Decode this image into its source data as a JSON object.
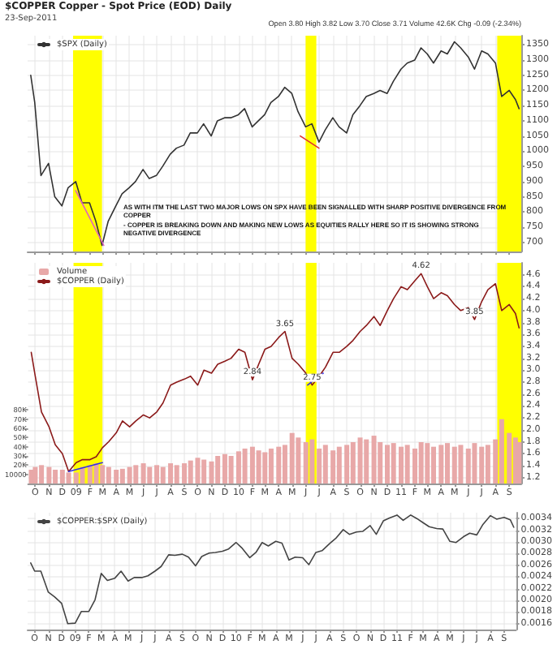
{
  "chart_data": [
    {
      "type": "line",
      "title": "$COPPER Copper - Spot Price (EOD) Daily",
      "subtitle": "23-Sep-2011",
      "x": [
        "2008-09-22",
        "2008-10-01",
        "2008-10-15",
        "2008-11-01",
        "2008-11-15",
        "2008-12-01",
        "2008-12-15",
        "2009-01-01",
        "2009-01-15",
        "2009-02-01",
        "2009-02-15",
        "2009-03-01",
        "2009-03-15",
        "2009-04-01",
        "2009-04-15",
        "2009-05-01",
        "2009-05-15",
        "2009-06-01",
        "2009-06-15",
        "2009-07-01",
        "2009-07-15",
        "2009-08-01",
        "2009-08-15",
        "2009-09-01",
        "2009-09-15",
        "2009-10-01",
        "2009-10-15",
        "2009-11-01",
        "2009-11-15",
        "2009-12-01",
        "2009-12-15",
        "2010-01-01",
        "2010-01-15",
        "2010-02-01",
        "2010-02-15",
        "2010-03-01",
        "2010-03-15",
        "2010-04-01",
        "2010-04-15",
        "2010-05-01",
        "2010-05-15",
        "2010-06-01",
        "2010-06-15",
        "2010-07-01",
        "2010-07-15",
        "2010-08-01",
        "2010-08-15",
        "2010-09-01",
        "2010-09-15",
        "2010-10-01",
        "2010-10-15",
        "2010-11-01",
        "2010-11-15",
        "2010-12-01",
        "2010-12-15",
        "2011-01-01",
        "2011-01-15",
        "2011-02-01",
        "2011-02-15",
        "2011-03-01",
        "2011-03-15",
        "2011-04-01",
        "2011-04-15",
        "2011-05-01",
        "2011-05-15",
        "2011-06-01",
        "2011-06-15",
        "2011-07-01",
        "2011-07-15",
        "2011-08-01",
        "2011-08-15",
        "2011-09-01",
        "2011-09-15",
        "2011-09-23"
      ],
      "series": [
        {
          "name": "$SPX (Daily)",
          "color": "#333333",
          "values": [
            1250,
            1160,
            920,
            960,
            850,
            820,
            880,
            900,
            830,
            830,
            770,
            690,
            770,
            820,
            860,
            880,
            900,
            940,
            910,
            920,
            950,
            990,
            1010,
            1020,
            1060,
            1060,
            1090,
            1050,
            1100,
            1110,
            1110,
            1120,
            1140,
            1080,
            1100,
            1120,
            1160,
            1180,
            1210,
            1190,
            1130,
            1080,
            1090,
            1030,
            1070,
            1110,
            1080,
            1060,
            1120,
            1150,
            1180,
            1190,
            1200,
            1190,
            1230,
            1270,
            1290,
            1300,
            1340,
            1320,
            1290,
            1330,
            1320,
            1360,
            1340,
            1310,
            1270,
            1330,
            1320,
            1290,
            1180,
            1200,
            1170,
            1140
          ]
        },
        {
          "type": "line",
          "color": "#e060c0",
          "x": [
            "2009-01-01",
            "2009-03-05"
          ],
          "values": [
            870,
            690
          ]
        },
        {
          "type": "line",
          "color": "#e03030",
          "x": [
            "2010-05-20",
            "2010-07-01"
          ],
          "values": [
            1050,
            1010
          ]
        }
      ],
      "xlim": [
        "2008-09-15",
        "2011-09-28"
      ],
      "ylim": [
        670,
        1380
      ],
      "yticks": [
        700,
        750,
        800,
        850,
        900,
        950,
        1000,
        1050,
        1100,
        1150,
        1200,
        1250,
        1300,
        1350
      ],
      "xticks": [
        {
          "value": "2008-10-01",
          "label": null
        },
        {
          "value": "2008-11-01",
          "label": null
        },
        {
          "value": "2008-12-01",
          "label": null
        },
        {
          "value": "2009-01-01",
          "label": null
        },
        {
          "value": "2009-02-01",
          "label": null
        },
        {
          "value": "2009-03-01",
          "label": null
        },
        {
          "value": "2009-04-01",
          "label": null
        },
        {
          "value": "2009-05-01",
          "label": null
        },
        {
          "value": "2009-06-01",
          "label": null
        },
        {
          "value": "2009-07-01",
          "label": null
        },
        {
          "value": "2009-08-01",
          "label": null
        },
        {
          "value": "2009-09-01",
          "label": null
        },
        {
          "value": "2009-10-01",
          "label": null
        },
        {
          "value": "2009-11-01",
          "label": null
        },
        {
          "value": "2009-12-01",
          "label": null
        },
        {
          "value": "2010-01-01",
          "label": null
        },
        {
          "value": "2010-02-01",
          "label": null
        },
        {
          "value": "2010-03-01",
          "label": null
        },
        {
          "value": "2010-04-01",
          "label": null
        },
        {
          "value": "2010-05-01",
          "label": null
        },
        {
          "value": "2010-06-01",
          "label": null
        },
        {
          "value": "2010-07-01",
          "label": null
        },
        {
          "value": "2010-08-01",
          "label": null
        },
        {
          "value": "2010-09-01",
          "label": null
        },
        {
          "value": "2010-10-01",
          "label": null
        },
        {
          "value": "2010-11-01",
          "label": null
        },
        {
          "value": "2010-12-01",
          "label": null
        },
        {
          "value": "2011-01-01",
          "label": null
        },
        {
          "value": "2011-02-01",
          "label": null
        },
        {
          "value": "2011-03-01",
          "label": null
        },
        {
          "value": "2011-04-01",
          "label": null
        },
        {
          "value": "2011-05-01",
          "label": null
        },
        {
          "value": "2011-06-01",
          "label": null
        },
        {
          "value": "2011-07-01",
          "label": null
        },
        {
          "value": "2011-08-01",
          "label": null
        },
        {
          "value": "2011-09-01",
          "label": null
        }
      ],
      "tick_labels": "y",
      "grid": true,
      "legend": "top left",
      "bands": [
        {
          "axis": "x",
          "from": "2008-12-26",
          "to": "2009-03-01",
          "color": "#ffff00"
        },
        {
          "axis": "x",
          "from": "2010-06-01",
          "to": "2010-06-25",
          "color": "#ffff00"
        },
        {
          "axis": "x",
          "from": "2011-08-05",
          "to": "2011-09-28",
          "color": "#ffff00"
        }
      ],
      "annotations": [
        "Open 3.80 High 3.82 Low 3.70 Close 3.71 Volume 42.6K Chg -0.09 (-2.34%)",
        "AS WITH ITM THE LAST TWO MAJOR LOWS ON SPX HAVE BEEN SIGNALLED WITH SHARP POSITIVE DIVERGENCE FROM COPPER",
        "- COPPER IS BREAKING DOWN AND MAKING NEW LOWS AS EQUITIES RALLY HERE SO IT IS SHOWING STRONG NEGATIVE DIVERGENCE"
      ]
    },
    {
      "type": "line",
      "x": [
        "2008-09-22",
        "2008-10-01",
        "2008-10-15",
        "2008-11-01",
        "2008-11-15",
        "2008-12-01",
        "2008-12-15",
        "2009-01-01",
        "2009-01-15",
        "2009-02-01",
        "2009-02-15",
        "2009-03-01",
        "2009-03-15",
        "2009-04-01",
        "2009-04-15",
        "2009-05-01",
        "2009-05-15",
        "2009-06-01",
        "2009-06-15",
        "2009-07-01",
        "2009-07-15",
        "2009-08-01",
        "2009-08-15",
        "2009-09-01",
        "2009-09-15",
        "2009-10-01",
        "2009-10-15",
        "2009-11-01",
        "2009-11-15",
        "2009-12-01",
        "2009-12-15",
        "2010-01-01",
        "2010-01-15",
        "2010-02-01",
        "2010-02-15",
        "2010-03-01",
        "2010-03-15",
        "2010-04-01",
        "2010-04-15",
        "2010-05-01",
        "2010-05-15",
        "2010-06-01",
        "2010-06-15",
        "2010-07-01",
        "2010-07-15",
        "2010-08-01",
        "2010-08-15",
        "2010-09-01",
        "2010-09-15",
        "2010-10-01",
        "2010-10-15",
        "2010-11-01",
        "2010-11-15",
        "2010-12-01",
        "2010-12-15",
        "2011-01-01",
        "2011-01-15",
        "2011-02-01",
        "2011-02-15",
        "2011-03-01",
        "2011-03-15",
        "2011-04-01",
        "2011-04-15",
        "2011-05-01",
        "2011-05-15",
        "2011-06-01",
        "2011-06-15",
        "2011-07-01",
        "2011-07-15",
        "2011-08-01",
        "2011-08-15",
        "2011-09-01",
        "2011-09-15",
        "2011-09-23"
      ],
      "series": [
        {
          "name": "Volume",
          "type": "bar",
          "axis": "y2",
          "color": "#e8a8a8",
          "values": [
            15000,
            18000,
            20000,
            18000,
            15000,
            15000,
            12000,
            12000,
            18000,
            20000,
            22000,
            20000,
            18000,
            15000,
            16000,
            18000,
            20000,
            22000,
            18000,
            20000,
            18000,
            22000,
            20000,
            22000,
            25000,
            28000,
            26000,
            24000,
            30000,
            32000,
            30000,
            35000,
            38000,
            40000,
            36000,
            34000,
            38000,
            40000,
            42000,
            55000,
            50000,
            45000,
            48000,
            38000,
            42000,
            36000,
            40000,
            42000,
            45000,
            50000,
            48000,
            52000,
            45000,
            42000,
            44000,
            40000,
            42000,
            38000,
            45000,
            44000,
            40000,
            42000,
            44000,
            40000,
            42000,
            38000,
            44000,
            40000,
            42000,
            48000,
            70000,
            55000,
            50000,
            45000
          ]
        },
        {
          "name": "$COPPER (Daily)",
          "color": "#8b1a1a",
          "values": [
            3.3,
            2.9,
            2.3,
            2.05,
            1.75,
            1.6,
            1.3,
            1.45,
            1.5,
            1.5,
            1.55,
            1.7,
            1.8,
            1.95,
            2.15,
            2.05,
            2.15,
            2.25,
            2.2,
            2.3,
            2.45,
            2.75,
            2.8,
            2.85,
            2.9,
            2.75,
            3.0,
            2.95,
            3.1,
            3.15,
            3.2,
            3.35,
            3.3,
            2.84,
            3.1,
            3.35,
            3.4,
            3.55,
            3.65,
            3.2,
            3.1,
            2.95,
            2.75,
            2.9,
            3.05,
            3.3,
            3.3,
            3.4,
            3.5,
            3.65,
            3.75,
            3.9,
            3.75,
            4.0,
            4.2,
            4.4,
            4.35,
            4.5,
            4.62,
            4.4,
            4.2,
            4.3,
            4.25,
            4.1,
            4.0,
            4.05,
            3.85,
            4.15,
            4.35,
            4.45,
            4.0,
            4.1,
            3.95,
            3.71
          ]
        },
        {
          "type": "line",
          "color": "#3030e0",
          "x": [
            "2008-12-15",
            "2009-03-01"
          ],
          "values": [
            1.3,
            1.45
          ]
        },
        {
          "type": "line",
          "color": "#3030e0",
          "x": [
            "2010-06-05",
            "2010-07-10"
          ],
          "values": [
            2.75,
            2.95
          ]
        }
      ],
      "xlim": [
        "2008-09-15",
        "2011-09-28"
      ],
      "ylim": [
        1.1,
        4.8
      ],
      "yticks": [
        1.2,
        1.4,
        1.6,
        1.8,
        {
          "value": 2,
          "label": "2.0"
        },
        2.2,
        2.4,
        2.6,
        2.8,
        {
          "value": 3,
          "label": "3.0"
        },
        3.2,
        3.4,
        3.6,
        3.8,
        {
          "value": 4,
          "label": "4.0"
        },
        4.2,
        4.4,
        4.6
      ],
      "y2lim": [
        0,
        240000
      ],
      "y2ticks": [
        10000,
        {
          "value": 20000,
          "label": "20K"
        },
        {
          "value": 30000,
          "label": "30K"
        },
        {
          "value": 40000,
          "label": "40K"
        },
        {
          "value": 50000,
          "label": "50K"
        },
        {
          "value": 60000,
          "label": "60K"
        },
        {
          "value": 70000,
          "label": "70K"
        },
        {
          "value": 80000,
          "label": "80K"
        }
      ],
      "xticks": [
        {
          "value": "2008-10-01",
          "label": "O"
        },
        {
          "value": "2008-11-01",
          "label": "N"
        },
        {
          "value": "2008-12-01",
          "label": "D"
        },
        {
          "value": "2009-01-01",
          "label": "09"
        },
        {
          "value": "2009-02-01",
          "label": "F"
        },
        {
          "value": "2009-03-01",
          "label": "M"
        },
        {
          "value": "2009-04-01",
          "label": "A"
        },
        {
          "value": "2009-05-01",
          "label": "M"
        },
        {
          "value": "2009-06-01",
          "label": "J"
        },
        {
          "value": "2009-07-01",
          "label": "J"
        },
        {
          "value": "2009-08-01",
          "label": "A"
        },
        {
          "value": "2009-09-01",
          "label": "S"
        },
        {
          "value": "2009-10-01",
          "label": "O"
        },
        {
          "value": "2009-11-01",
          "label": "N"
        },
        {
          "value": "2009-12-01",
          "label": "D"
        },
        {
          "value": "2010-01-01",
          "label": "10"
        },
        {
          "value": "2010-02-01",
          "label": "F"
        },
        {
          "value": "2010-03-01",
          "label": "M"
        },
        {
          "value": "2010-04-01",
          "label": "A"
        },
        {
          "value": "2010-05-01",
          "label": "M"
        },
        {
          "value": "2010-06-01",
          "label": "J"
        },
        {
          "value": "2010-07-01",
          "label": "J"
        },
        {
          "value": "2010-08-01",
          "label": "A"
        },
        {
          "value": "2010-09-01",
          "label": "S"
        },
        {
          "value": "2010-10-01",
          "label": "O"
        },
        {
          "value": "2010-11-01",
          "label": "N"
        },
        {
          "value": "2010-12-01",
          "label": "D"
        },
        {
          "value": "2011-01-01",
          "label": "11"
        },
        {
          "value": "2011-02-01",
          "label": "F"
        },
        {
          "value": "2011-03-01",
          "label": "M"
        },
        {
          "value": "2011-04-01",
          "label": "A"
        },
        {
          "value": "2011-05-01",
          "label": "M"
        },
        {
          "value": "2011-06-01",
          "label": "J"
        },
        {
          "value": "2011-07-01",
          "label": "J"
        },
        {
          "value": "2011-08-01",
          "label": "A"
        },
        {
          "value": "2011-09-01",
          "label": "S"
        }
      ],
      "grid": true,
      "legend": "top left",
      "bands": [
        {
          "axis": "x",
          "from": "2008-12-26",
          "to": "2009-03-01",
          "color": "#ffff00"
        },
        {
          "axis": "x",
          "from": "2010-06-01",
          "to": "2010-06-25",
          "color": "#ffff00"
        },
        {
          "axis": "x",
          "from": "2011-08-05",
          "to": "2011-09-28",
          "color": "#ffff00"
        }
      ],
      "annotations": [
        {
          "text": "2.84",
          "x": "2010-02-01",
          "y": 2.84
        },
        {
          "text": "3.65",
          "x": "2010-04-15",
          "y": 3.65
        },
        {
          "text": "2.75",
          "x": "2010-06-15",
          "y": 2.75
        },
        {
          "text": "4.62",
          "x": "2011-02-15",
          "y": 4.62
        },
        {
          "text": "3.85",
          "x": "2011-06-15",
          "y": 3.85
        }
      ]
    },
    {
      "type": "line",
      "x": [
        "2008-09-22",
        "2008-10-01",
        "2008-10-15",
        "2008-11-01",
        "2008-11-15",
        "2008-12-01",
        "2008-12-15",
        "2009-01-01",
        "2009-01-15",
        "2009-02-01",
        "2009-02-15",
        "2009-03-01",
        "2009-03-15",
        "2009-04-01",
        "2009-04-15",
        "2009-05-01",
        "2009-05-15",
        "2009-06-01",
        "2009-06-15",
        "2009-07-01",
        "2009-07-15",
        "2009-08-01",
        "2009-08-15",
        "2009-09-01",
        "2009-09-15",
        "2009-10-01",
        "2009-10-15",
        "2009-11-01",
        "2009-11-15",
        "2009-12-01",
        "2009-12-15",
        "2010-01-01",
        "2010-01-15",
        "2010-02-01",
        "2010-02-15",
        "2010-03-01",
        "2010-03-15",
        "2010-04-01",
        "2010-04-15",
        "2010-05-01",
        "2010-05-15",
        "2010-06-01",
        "2010-06-15",
        "2010-07-01",
        "2010-07-15",
        "2010-08-01",
        "2010-08-15",
        "2010-09-01",
        "2010-09-15",
        "2010-10-01",
        "2010-10-15",
        "2010-11-01",
        "2010-11-15",
        "2010-12-01",
        "2010-12-15",
        "2011-01-01",
        "2011-01-15",
        "2011-02-01",
        "2011-02-15",
        "2011-03-01",
        "2011-03-15",
        "2011-04-01",
        "2011-04-15",
        "2011-05-01",
        "2011-05-15",
        "2011-06-01",
        "2011-06-15",
        "2011-07-01",
        "2011-07-15",
        "2011-08-01",
        "2011-08-15",
        "2011-09-01",
        "2011-09-15",
        "2011-09-23"
      ],
      "series": [
        {
          "name": "$COPPER:$SPX (Daily)",
          "color": "#444444",
          "values": [
            0.00264,
            0.0025,
            0.0025,
            0.00214,
            0.00206,
            0.00195,
            0.0016,
            0.00161,
            0.00181,
            0.00181,
            0.00201,
            0.00246,
            0.00234,
            0.00238,
            0.0025,
            0.00233,
            0.00239,
            0.00239,
            0.00242,
            0.0025,
            0.00258,
            0.00278,
            0.00277,
            0.00279,
            0.00274,
            0.00259,
            0.00275,
            0.00281,
            0.00282,
            0.00284,
            0.00288,
            0.00299,
            0.00289,
            0.00273,
            0.00282,
            0.00299,
            0.00293,
            0.00301,
            0.00298,
            0.00269,
            0.00274,
            0.00273,
            0.00261,
            0.00282,
            0.00285,
            0.00297,
            0.00306,
            0.00321,
            0.00313,
            0.00317,
            0.00318,
            0.00328,
            0.00313,
            0.00336,
            0.00341,
            0.00346,
            0.00337,
            0.00346,
            0.0034,
            0.00333,
            0.00326,
            0.00323,
            0.00322,
            0.00301,
            0.00299,
            0.00309,
            0.00315,
            0.00312,
            0.0033,
            0.00345,
            0.00339,
            0.00342,
            0.00338,
            0.00325
          ]
        }
      ],
      "xlim": [
        "2008-09-15",
        "2011-09-28"
      ],
      "ylim": [
        0.0015,
        0.0035
      ],
      "yticks": [
        0.0016,
        0.0018,
        {
          "value": 0.002,
          "label": "0.0020"
        },
        0.0022,
        0.0024,
        0.0026,
        0.0028,
        {
          "value": 0.003,
          "label": "0.0030"
        },
        0.0032,
        0.0034
      ],
      "xticks": [
        {
          "value": "2008-10-01",
          "label": "O"
        },
        {
          "value": "2008-11-01",
          "label": "N"
        },
        {
          "value": "2008-12-01",
          "label": "D"
        },
        {
          "value": "2009-01-01",
          "label": "09"
        },
        {
          "value": "2009-02-01",
          "label": "F"
        },
        {
          "value": "2009-03-01",
          "label": "M"
        },
        {
          "value": "2009-04-01",
          "label": "A"
        },
        {
          "value": "2009-05-01",
          "label": "M"
        },
        {
          "value": "2009-06-01",
          "label": "J"
        },
        {
          "value": "2009-07-01",
          "label": "J"
        },
        {
          "value": "2009-08-01",
          "label": "A"
        },
        {
          "value": "2009-09-01",
          "label": "S"
        },
        {
          "value": "2009-10-01",
          "label": "O"
        },
        {
          "value": "2009-11-01",
          "label": "N"
        },
        {
          "value": "2009-12-01",
          "label": "D"
        },
        {
          "value": "2010-01-01",
          "label": "10"
        },
        {
          "value": "2010-02-01",
          "label": "F"
        },
        {
          "value": "2010-03-01",
          "label": "M"
        },
        {
          "value": "2010-04-01",
          "label": "A"
        },
        {
          "value": "2010-05-01",
          "label": "M"
        },
        {
          "value": "2010-06-01",
          "label": "J"
        },
        {
          "value": "2010-07-01",
          "label": "J"
        },
        {
          "value": "2010-08-01",
          "label": "A"
        },
        {
          "value": "2010-09-01",
          "label": "S"
        },
        {
          "value": "2010-10-01",
          "label": "O"
        },
        {
          "value": "2010-11-01",
          "label": "N"
        },
        {
          "value": "2010-12-01",
          "label": "D"
        },
        {
          "value": "2011-01-01",
          "label": "11"
        },
        {
          "value": "2011-02-01",
          "label": "F"
        },
        {
          "value": "2011-03-01",
          "label": "M"
        },
        {
          "value": "2011-04-01",
          "label": "A"
        },
        {
          "value": "2011-05-01",
          "label": "M"
        },
        {
          "value": "2011-06-01",
          "label": "J"
        },
        {
          "value": "2011-07-01",
          "label": "J"
        },
        {
          "value": "2011-08-01",
          "label": "A"
        },
        {
          "value": "2011-09-01",
          "label": "S"
        }
      ],
      "grid": true,
      "legend": "top left"
    }
  ]
}
